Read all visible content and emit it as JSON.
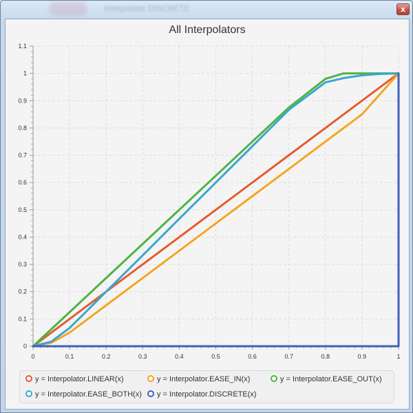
{
  "window": {
    "title": "Interpolator DISCRETE",
    "close_glyph": "x"
  },
  "chart_data": {
    "type": "line",
    "title": "All Interpolators",
    "xlabel": "",
    "ylabel": "",
    "xlim": [
      0,
      1
    ],
    "ylim": [
      0,
      1.1
    ],
    "x_ticks": [
      "0",
      "0.1",
      "0.2",
      "0.3",
      "0.4",
      "0.5",
      "0.6",
      "0.7",
      "0.8",
      "0.9",
      "1"
    ],
    "y_ticks": [
      "0",
      "0.1",
      "0.2",
      "0.3",
      "0.4",
      "0.5",
      "0.6",
      "0.7",
      "0.8",
      "0.9",
      "1",
      "1.1"
    ],
    "grid": true,
    "legend_position": "bottom",
    "series": [
      {
        "name": "y = Interpolator.LINEAR(x)",
        "color": "#e35c31",
        "x": [
          0,
          0.1,
          0.2,
          0.3,
          0.4,
          0.5,
          0.6,
          0.7,
          0.8,
          0.9,
          1
        ],
        "y": [
          0,
          0.1,
          0.2,
          0.3,
          0.4,
          0.5,
          0.6,
          0.7,
          0.8,
          0.9,
          1
        ]
      },
      {
        "name": "y = Interpolator.EASE_IN(x)",
        "color": "#f3a621",
        "x": [
          0,
          0.05,
          0.1,
          0.15,
          0.2,
          0.3,
          0.4,
          0.5,
          0.6,
          0.7,
          0.8,
          0.9,
          1
        ],
        "y": [
          0,
          0.0125,
          0.05,
          0.1,
          0.15,
          0.25,
          0.35,
          0.45,
          0.55,
          0.65,
          0.75,
          0.85,
          1
        ]
      },
      {
        "name": "y = Interpolator.EASE_OUT(x)",
        "color": "#4db345",
        "x": [
          0,
          0.1,
          0.2,
          0.3,
          0.4,
          0.5,
          0.6,
          0.7,
          0.8,
          0.85,
          0.9,
          0.95,
          1
        ],
        "y": [
          0,
          0.125,
          0.25,
          0.375,
          0.5,
          0.625,
          0.75,
          0.875,
          0.98,
          1.0,
          1.0,
          1.0,
          1.0
        ]
      },
      {
        "name": "y = Interpolator.EASE_BOTH(x)",
        "color": "#3aa6cf",
        "x": [
          0,
          0.05,
          0.1,
          0.15,
          0.2,
          0.3,
          0.4,
          0.5,
          0.6,
          0.7,
          0.8,
          0.85,
          0.9,
          0.95,
          1
        ],
        "y": [
          0,
          0.017,
          0.067,
          0.133,
          0.2,
          0.333,
          0.467,
          0.6,
          0.733,
          0.867,
          0.967,
          0.983,
          0.993,
          0.998,
          1
        ]
      },
      {
        "name": "y = Interpolator.DISCRETE(x)",
        "color": "#3f5fbd",
        "x": [
          0,
          0.99,
          1,
          1
        ],
        "y": [
          0,
          0,
          0,
          1
        ]
      }
    ]
  }
}
